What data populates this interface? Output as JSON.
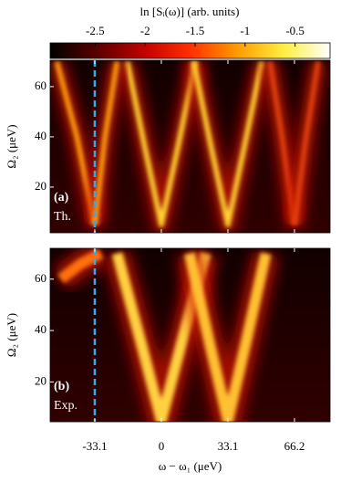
{
  "chart_data": [
    {
      "type": "heatmap",
      "panel_label": "(a)",
      "panel_sublabel": "Th.",
      "ylabel": "Ω₂ (μeV)",
      "xlim": [
        -55.3,
        83.9
      ],
      "ylim": [
        1.8,
        70.5
      ],
      "xticks": [
        -33.1,
        0,
        33.1,
        66.2
      ],
      "yticks": [
        20,
        40,
        60
      ],
      "show_xtick_labels": false,
      "vline": -33.1,
      "vline_color": "#3aa8e8",
      "colorbar": {
        "label": "ln [Sᵢ(ω)] (arb. units)",
        "lim": [
          -2.95,
          -0.15
        ],
        "ticks": [
          -2.5,
          -2,
          -1.5,
          -1,
          -0.5
        ],
        "colormap": [
          "#000000",
          "#5a0000",
          "#c00000",
          "#ff3000",
          "#ff9a00",
          "#ffee40",
          "#ffffff"
        ]
      },
      "series": [
        {
          "color": "#ffd030",
          "x": [
            -17,
            -8,
            0,
            8,
            17
          ],
          "values": [
            70,
            35,
            5,
            35,
            70
          ]
        },
        {
          "color": "#ffd030",
          "x": [
            16,
            25,
            33.1,
            41,
            50
          ],
          "values": [
            70,
            35,
            5,
            35,
            70
          ]
        },
        {
          "color": "#ff9a10",
          "x": [
            -33.1,
            -42,
            -52
          ],
          "values": [
            5,
            40,
            70
          ]
        },
        {
          "color": "#ff9a10",
          "x": [
            -33.1,
            -28,
            -22
          ],
          "values": [
            5,
            40,
            70
          ]
        },
        {
          "color": "#e04010",
          "x": [
            66.2,
            60,
            54
          ],
          "values": [
            5,
            40,
            70
          ]
        },
        {
          "color": "#e04010",
          "x": [
            66.2,
            72,
            78
          ],
          "values": [
            5,
            40,
            70
          ]
        }
      ]
    },
    {
      "type": "heatmap",
      "panel_label": "(b)",
      "panel_sublabel": "Exp.",
      "ylabel": "Ω₂ (μeV)",
      "xlabel": "ω − ω₁ (μeV)",
      "xlim": [
        -55.3,
        83.9
      ],
      "ylim": [
        4.5,
        72
      ],
      "xticks": [
        -33.1,
        0,
        33.1,
        66.2
      ],
      "yticks": [
        20,
        40,
        60
      ],
      "show_xtick_labels": true,
      "vline": -33.1,
      "vline_color": "#3aa8e8",
      "series": [
        {
          "color": "#ffd040",
          "x": [
            -22,
            -10,
            0,
            10,
            22
          ],
          "values": [
            70,
            35,
            5,
            35,
            70
          ]
        },
        {
          "color": "#ffc030",
          "x": [
            14,
            24,
            33.1,
            42,
            52
          ],
          "values": [
            70,
            35,
            5,
            35,
            70
          ]
        },
        {
          "color": "#ffb020",
          "x": [
            -33.1,
            -33.1
          ],
          "values": [
            45,
            70
          ]
        },
        {
          "color": "#ff7010",
          "x": [
            -50,
            -40,
            -30
          ],
          "values": [
            60,
            66,
            70
          ]
        }
      ]
    }
  ]
}
